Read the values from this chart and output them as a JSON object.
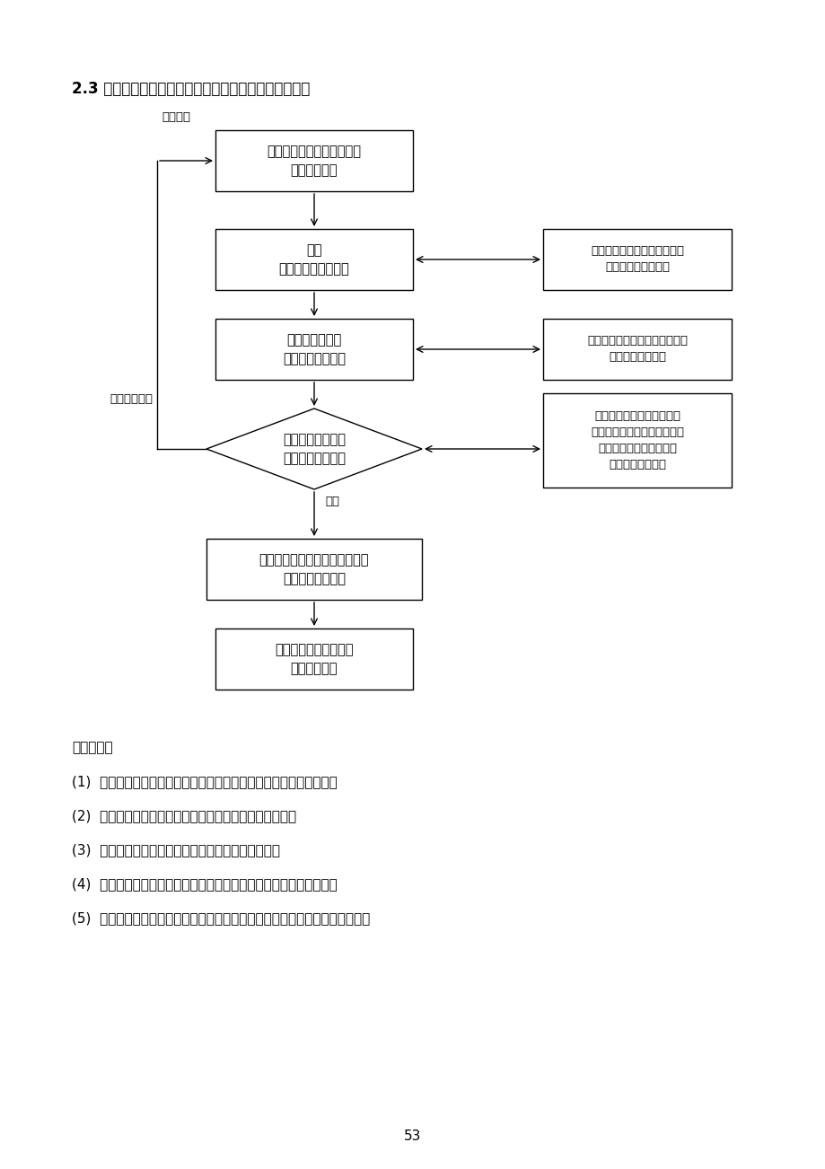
{
  "title": "2.3 施工组织设计（施工方案）审核工作程序及实施要点",
  "bg_color": "#ffffff",
  "page_number": "53",
  "box1_text": "施工组织设计（方案）申报\n（承包单位）",
  "box2_text": "初审\n（专业监理工程师）",
  "box3_text": "监理项目部会审\n（总监理工程师）",
  "box4_text": "施工组织设计审批\n（总监理工程师）",
  "box5_text": "将批件返回承包方并送建设单位\n（资料管理人员）",
  "box6_text": "施工组织设计付诸实施\n（承包单位）",
  "right1_text": "向施工方询问和落实主要问题\n（专业监理工程师）",
  "right2_text": "重大问题与建设单位、设计协商\n（总监理工程师）",
  "right3_text": "对重大施工方案组织建设单\n位、设计、承包、监理共同参\n加的方案专题会共同审定\n（总监理工程师）",
  "label_xiugai": "修改补充",
  "label_tigai": "提出修改意见",
  "label_tongguo": "通过",
  "impl_title": "实施要点：",
  "impl_items": [
    "(1)  施工组织设计或施工方案是否经承包单位上级技术管理部门审批。",
    "(2)  施工方案是否切实可行（结合工程特点和工地环境）。",
    "(3)  主要的技术措施是否符合规范的要求，是否齐全。",
    "(4)  上述审核由总监组织，专业监理工程师参加，要求在一周内完成。",
    "(5)  若属重大工程及施工复杂项目，总监的审批意见应报公司技术负责人复审。"
  ]
}
